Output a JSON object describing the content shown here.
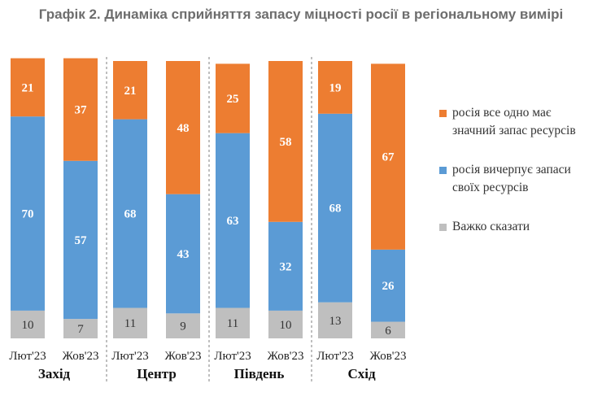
{
  "title": "Графік 2. Динаміка сприйняття запасу міцності росії в регіональному вимірі",
  "colors": {
    "strong": "#ed7d31",
    "exhausting": "#5b9bd5",
    "hard": "#bfbfbf"
  },
  "chart_data": {
    "type": "bar",
    "stacked": true,
    "percent_total": 100,
    "title": "Графік 2. Динаміка сприйняття запасу міцності росії в регіональному вимірі",
    "series": [
      {
        "key": "hard",
        "name": "Важко сказати"
      },
      {
        "key": "exhausting",
        "name": "росія вичерпує запаси своїх ресурсів"
      },
      {
        "key": "strong",
        "name": "росія все одно має значний запас ресурсів"
      }
    ],
    "groups": [
      {
        "region": "Захід",
        "bars": [
          {
            "period": "Лют'23",
            "hard": 10,
            "exhausting": 70,
            "strong": 21
          },
          {
            "period": "Жов'23",
            "hard": 7,
            "exhausting": 57,
            "strong": 37
          }
        ]
      },
      {
        "region": "Центр",
        "bars": [
          {
            "period": "Лют'23",
            "hard": 11,
            "exhausting": 68,
            "strong": 21
          },
          {
            "period": "Жов'23",
            "hard": 9,
            "exhausting": 43,
            "strong": 48
          }
        ]
      },
      {
        "region": "Південь",
        "bars": [
          {
            "period": "Лют'23",
            "hard": 11,
            "exhausting": 63,
            "strong": 25
          },
          {
            "period": "Жов'23",
            "hard": 10,
            "exhausting": 32,
            "strong": 58
          }
        ]
      },
      {
        "region": "Схід",
        "bars": [
          {
            "period": "Лют'23",
            "hard": 13,
            "exhausting": 68,
            "strong": 19
          },
          {
            "period": "Жов'23",
            "hard": 6,
            "exhausting": 26,
            "strong": 67
          }
        ]
      }
    ]
  },
  "legend": [
    {
      "key": "strong",
      "label": "росія все одно має значний запас ресурсів"
    },
    {
      "key": "exhausting",
      "label": "росія вичерпує запаси своїх ресурсів"
    },
    {
      "key": "hard",
      "label": "Важко сказати"
    }
  ]
}
